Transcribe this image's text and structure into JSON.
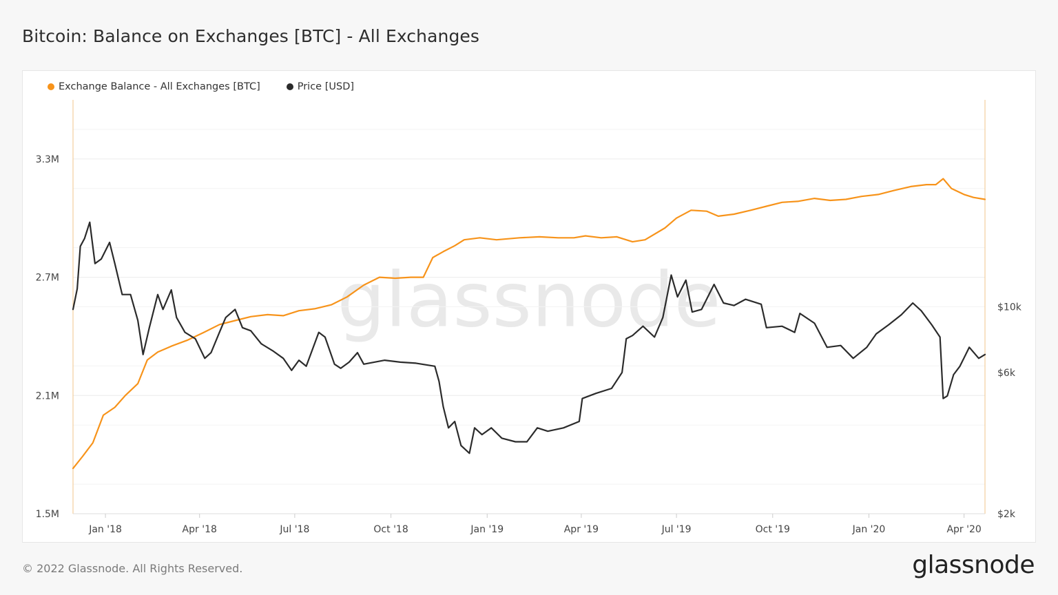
{
  "title": "Bitcoin: Balance on Exchanges [BTC] - All Exchanges",
  "footer": "© 2022 Glassnode. All Rights Reserved.",
  "brand": "glassnode",
  "watermark": "glassnode",
  "colors": {
    "balance": "#f7931a",
    "price": "#2b2b2b",
    "grid": "#ececec",
    "axis": "#f0c48a"
  },
  "chart_data": {
    "type": "line",
    "title": "Bitcoin: Balance on Exchanges [BTC] - All Exchanges",
    "x_range": [
      "2017-12-01",
      "2020-04-21"
    ],
    "x_ticks": [
      "Jan '18",
      "Apr '18",
      "Jul '18",
      "Oct '18",
      "Jan '19",
      "Apr '19",
      "Jul '19",
      "Oct '19",
      "Jan '20",
      "Apr '20"
    ],
    "y_left": {
      "label": "",
      "ticks": [
        "1.5M",
        "2.1M",
        "2.7M",
        "3.3M"
      ],
      "min": 1500000,
      "max": 3600000
    },
    "y_right": {
      "label": "",
      "scale": "log",
      "ticks": [
        "$2k",
        "$6k",
        "$10k"
      ],
      "min": 2000,
      "max": 50000
    },
    "grid": true,
    "legend_position": "top-left",
    "series": [
      {
        "name": "Exchange Balance - All Exchanges [BTC]",
        "axis": "left",
        "color": "#f7931a",
        "points": [
          [
            "2017-12-01",
            1730000
          ],
          [
            "2017-12-10",
            1790000
          ],
          [
            "2017-12-20",
            1860000
          ],
          [
            "2017-12-30",
            2000000
          ],
          [
            "2018-01-10",
            2040000
          ],
          [
            "2018-01-20",
            2100000
          ],
          [
            "2018-02-01",
            2160000
          ],
          [
            "2018-02-10",
            2280000
          ],
          [
            "2018-02-20",
            2320000
          ],
          [
            "2018-03-05",
            2350000
          ],
          [
            "2018-03-20",
            2380000
          ],
          [
            "2018-04-05",
            2420000
          ],
          [
            "2018-04-20",
            2460000
          ],
          [
            "2018-05-05",
            2480000
          ],
          [
            "2018-05-20",
            2500000
          ],
          [
            "2018-06-05",
            2510000
          ],
          [
            "2018-06-20",
            2505000
          ],
          [
            "2018-07-05",
            2530000
          ],
          [
            "2018-07-20",
            2540000
          ],
          [
            "2018-08-05",
            2560000
          ],
          [
            "2018-08-20",
            2600000
          ],
          [
            "2018-09-05",
            2660000
          ],
          [
            "2018-09-20",
            2700000
          ],
          [
            "2018-10-05",
            2695000
          ],
          [
            "2018-10-20",
            2700000
          ],
          [
            "2018-11-01",
            2700000
          ],
          [
            "2018-11-10",
            2800000
          ],
          [
            "2018-11-20",
            2830000
          ],
          [
            "2018-12-01",
            2860000
          ],
          [
            "2018-12-10",
            2890000
          ],
          [
            "2018-12-25",
            2900000
          ],
          [
            "2019-01-10",
            2890000
          ],
          [
            "2019-02-01",
            2900000
          ],
          [
            "2019-02-20",
            2905000
          ],
          [
            "2019-03-10",
            2900000
          ],
          [
            "2019-03-25",
            2900000
          ],
          [
            "2019-04-05",
            2910000
          ],
          [
            "2019-04-20",
            2900000
          ],
          [
            "2019-05-05",
            2905000
          ],
          [
            "2019-05-20",
            2880000
          ],
          [
            "2019-06-01",
            2890000
          ],
          [
            "2019-06-20",
            2950000
          ],
          [
            "2019-07-01",
            3000000
          ],
          [
            "2019-07-15",
            3040000
          ],
          [
            "2019-07-30",
            3035000
          ],
          [
            "2019-08-10",
            3010000
          ],
          [
            "2019-08-25",
            3020000
          ],
          [
            "2019-09-10",
            3040000
          ],
          [
            "2019-09-25",
            3060000
          ],
          [
            "2019-10-10",
            3080000
          ],
          [
            "2019-10-25",
            3085000
          ],
          [
            "2019-11-10",
            3100000
          ],
          [
            "2019-11-25",
            3090000
          ],
          [
            "2019-12-10",
            3095000
          ],
          [
            "2019-12-25",
            3110000
          ],
          [
            "2020-01-10",
            3120000
          ],
          [
            "2020-01-25",
            3140000
          ],
          [
            "2020-02-10",
            3160000
          ],
          [
            "2020-02-25",
            3170000
          ],
          [
            "2020-03-05",
            3170000
          ],
          [
            "2020-03-12",
            3200000
          ],
          [
            "2020-03-20",
            3150000
          ],
          [
            "2020-04-01",
            3120000
          ],
          [
            "2020-04-10",
            3105000
          ],
          [
            "2020-04-21",
            3095000
          ]
        ]
      },
      {
        "name": "Price [USD]",
        "axis": "right",
        "color": "#2b2b2b",
        "points": [
          [
            "2017-12-01",
            9800
          ],
          [
            "2017-12-05",
            11500
          ],
          [
            "2017-12-08",
            16000
          ],
          [
            "2017-12-12",
            17000
          ],
          [
            "2017-12-17",
            19300
          ],
          [
            "2017-12-22",
            14000
          ],
          [
            "2017-12-28",
            14500
          ],
          [
            "2018-01-05",
            16500
          ],
          [
            "2018-01-10",
            14000
          ],
          [
            "2018-01-17",
            11000
          ],
          [
            "2018-01-25",
            11000
          ],
          [
            "2018-02-01",
            9000
          ],
          [
            "2018-02-06",
            6900
          ],
          [
            "2018-02-12",
            8500
          ],
          [
            "2018-02-20",
            11000
          ],
          [
            "2018-02-25",
            9800
          ],
          [
            "2018-03-05",
            11400
          ],
          [
            "2018-03-10",
            9200
          ],
          [
            "2018-03-18",
            8200
          ],
          [
            "2018-03-28",
            7800
          ],
          [
            "2018-04-06",
            6700
          ],
          [
            "2018-04-12",
            7000
          ],
          [
            "2018-04-20",
            8200
          ],
          [
            "2018-04-26",
            9200
          ],
          [
            "2018-05-05",
            9800
          ],
          [
            "2018-05-12",
            8500
          ],
          [
            "2018-05-20",
            8300
          ],
          [
            "2018-05-30",
            7500
          ],
          [
            "2018-06-10",
            7100
          ],
          [
            "2018-06-20",
            6700
          ],
          [
            "2018-06-28",
            6100
          ],
          [
            "2018-07-05",
            6600
          ],
          [
            "2018-07-12",
            6300
          ],
          [
            "2018-07-24",
            8200
          ],
          [
            "2018-07-30",
            7900
          ],
          [
            "2018-08-08",
            6400
          ],
          [
            "2018-08-14",
            6200
          ],
          [
            "2018-08-22",
            6500
          ],
          [
            "2018-08-30",
            7000
          ],
          [
            "2018-09-05",
            6400
          ],
          [
            "2018-09-15",
            6500
          ],
          [
            "2018-09-25",
            6600
          ],
          [
            "2018-10-10",
            6500
          ],
          [
            "2018-10-25",
            6450
          ],
          [
            "2018-11-12",
            6300
          ],
          [
            "2018-11-16",
            5600
          ],
          [
            "2018-11-20",
            4600
          ],
          [
            "2018-11-25",
            3900
          ],
          [
            "2018-12-01",
            4100
          ],
          [
            "2018-12-07",
            3400
          ],
          [
            "2018-12-15",
            3200
          ],
          [
            "2018-12-20",
            3900
          ],
          [
            "2018-12-27",
            3700
          ],
          [
            "2019-01-05",
            3900
          ],
          [
            "2019-01-15",
            3600
          ],
          [
            "2019-01-28",
            3500
          ],
          [
            "2019-02-08",
            3500
          ],
          [
            "2019-02-18",
            3900
          ],
          [
            "2019-02-28",
            3800
          ],
          [
            "2019-03-15",
            3900
          ],
          [
            "2019-03-30",
            4100
          ],
          [
            "2019-04-02",
            4900
          ],
          [
            "2019-04-15",
            5100
          ],
          [
            "2019-04-30",
            5300
          ],
          [
            "2019-05-10",
            6000
          ],
          [
            "2019-05-14",
            7800
          ],
          [
            "2019-05-20",
            8000
          ],
          [
            "2019-05-30",
            8600
          ],
          [
            "2019-06-10",
            7900
          ],
          [
            "2019-06-18",
            9200
          ],
          [
            "2019-06-26",
            12800
          ],
          [
            "2019-07-02",
            10800
          ],
          [
            "2019-07-10",
            12300
          ],
          [
            "2019-07-16",
            9600
          ],
          [
            "2019-07-25",
            9800
          ],
          [
            "2019-08-06",
            11900
          ],
          [
            "2019-08-15",
            10300
          ],
          [
            "2019-08-25",
            10100
          ],
          [
            "2019-09-05",
            10600
          ],
          [
            "2019-09-20",
            10200
          ],
          [
            "2019-09-25",
            8500
          ],
          [
            "2019-10-10",
            8600
          ],
          [
            "2019-10-22",
            8200
          ],
          [
            "2019-10-27",
            9500
          ],
          [
            "2019-11-10",
            8800
          ],
          [
            "2019-11-22",
            7300
          ],
          [
            "2019-12-05",
            7400
          ],
          [
            "2019-12-17",
            6700
          ],
          [
            "2019-12-30",
            7300
          ],
          [
            "2020-01-08",
            8100
          ],
          [
            "2020-01-20",
            8700
          ],
          [
            "2020-02-01",
            9400
          ],
          [
            "2020-02-12",
            10300
          ],
          [
            "2020-02-20",
            9700
          ],
          [
            "2020-03-01",
            8700
          ],
          [
            "2020-03-09",
            7900
          ],
          [
            "2020-03-12",
            4900
          ],
          [
            "2020-03-16",
            5000
          ],
          [
            "2020-03-22",
            5900
          ],
          [
            "2020-03-28",
            6300
          ],
          [
            "2020-04-06",
            7300
          ],
          [
            "2020-04-15",
            6700
          ],
          [
            "2020-04-21",
            6900
          ]
        ]
      }
    ]
  }
}
